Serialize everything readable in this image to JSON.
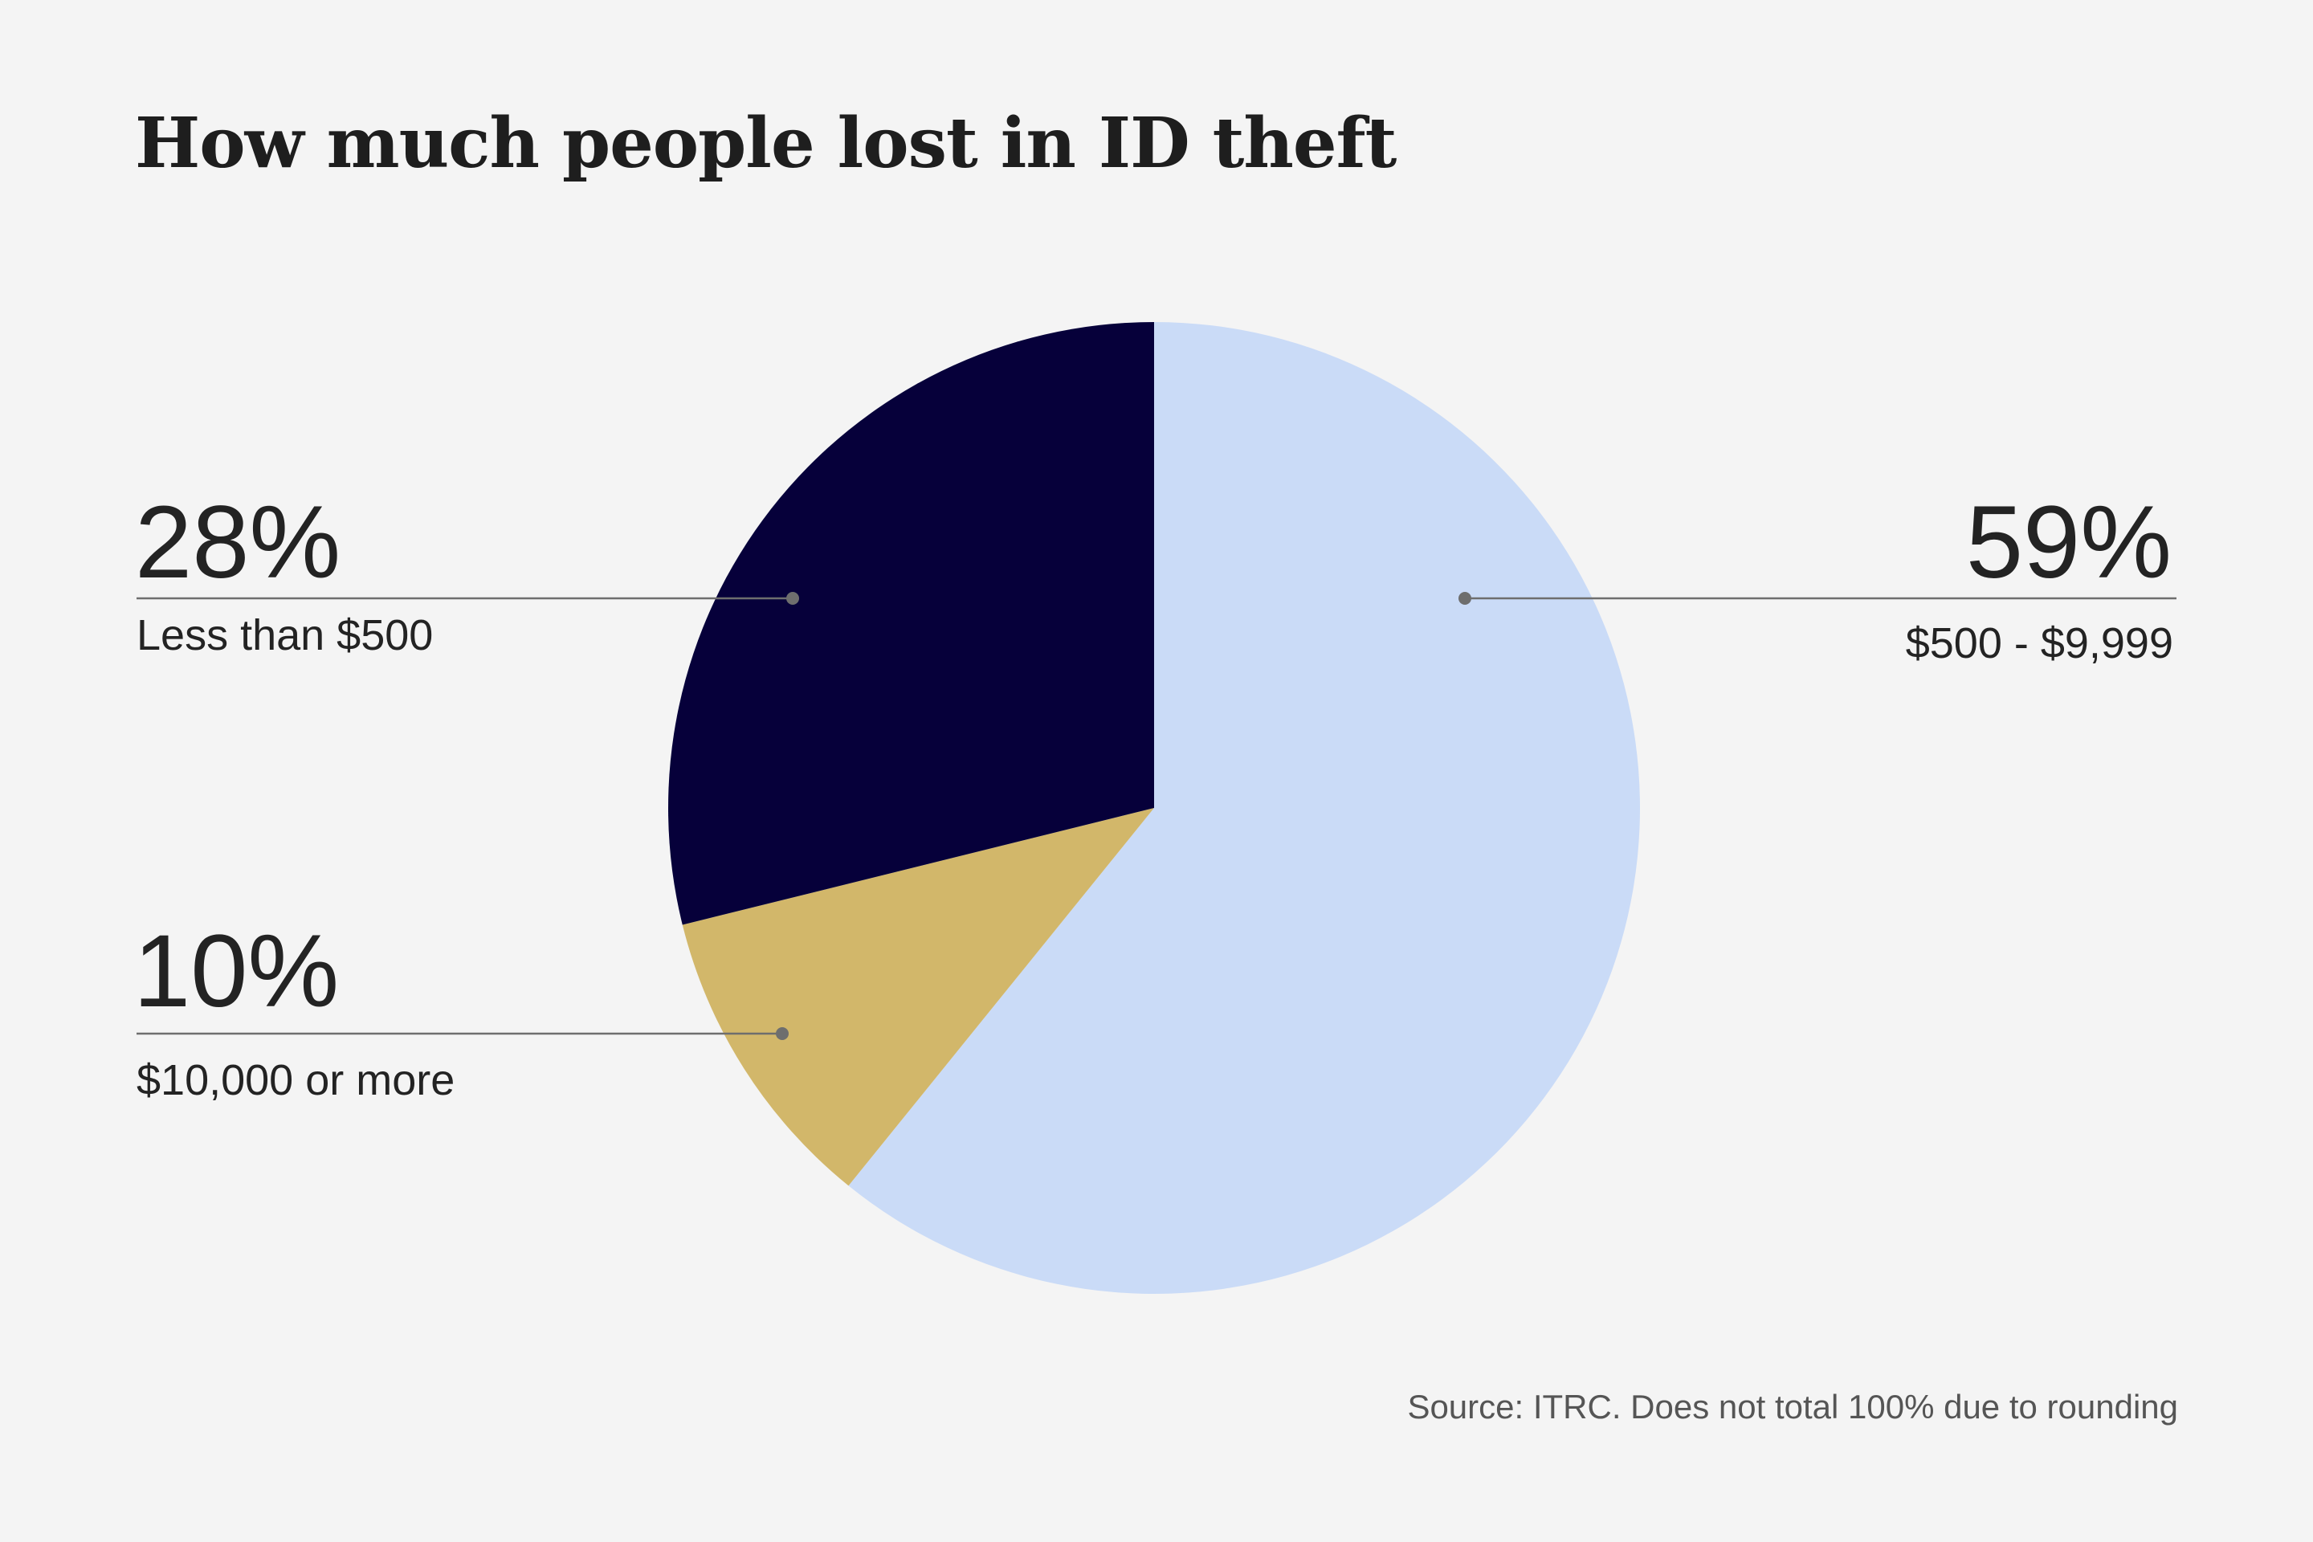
{
  "chart_data": {
    "type": "pie",
    "title": "How much people lost in ID theft",
    "slices": [
      {
        "label": "$500 - $9,999",
        "value": 59,
        "value_label": "59%",
        "color": "#cadbf7"
      },
      {
        "label": "$10,000 or more",
        "value": 10,
        "value_label": "10%",
        "color": "#d2b76a"
      },
      {
        "label": "Less than $500",
        "value": 28,
        "value_label": "28%",
        "color": "#06003a"
      }
    ],
    "source": "Source: ITRC. Does not total 100% due to rounding",
    "leader_color": "#6e6e6e",
    "background": "#f4f4f4"
  }
}
